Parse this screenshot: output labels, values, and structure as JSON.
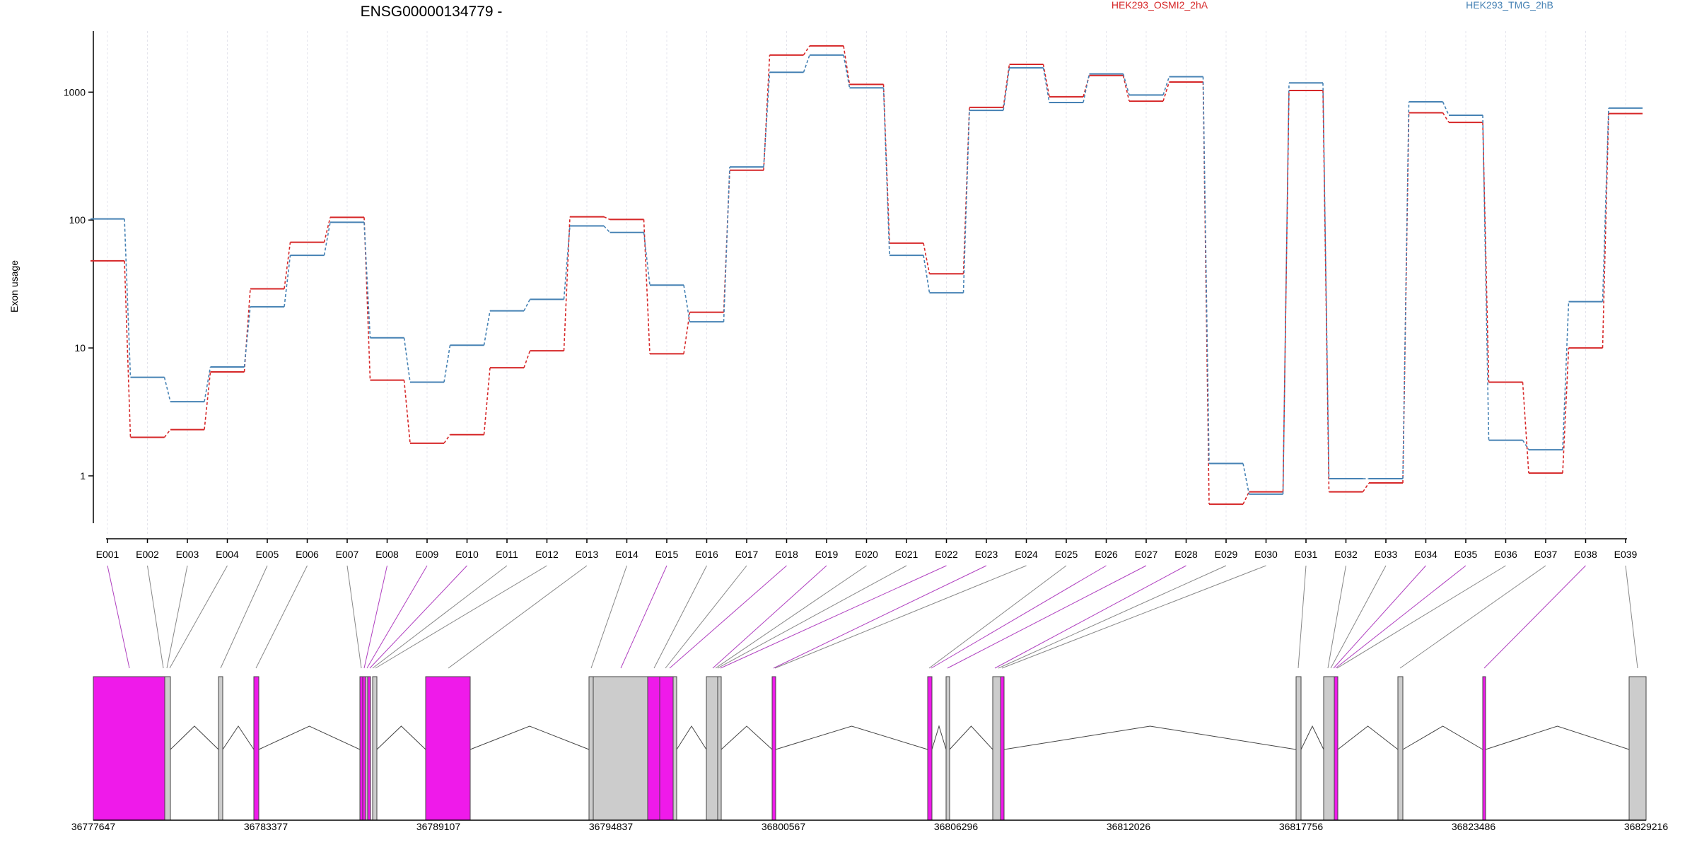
{
  "chart_data": {
    "type": "line",
    "title": "ENSG00000134779 -",
    "ylabel": "Exon usage",
    "yscale": "log",
    "ylim": [
      0.4,
      3000
    ],
    "yticks": [
      1,
      10,
      100,
      1000
    ],
    "ytick_labels": [
      "1",
      "10",
      "100",
      "1000"
    ],
    "grid": "vertical dotted lines at each exon",
    "legend_placement": "top-right",
    "categories": [
      "E001",
      "E002",
      "E003",
      "E004",
      "E005",
      "E006",
      "E007",
      "E008",
      "E009",
      "E010",
      "E011",
      "E012",
      "E013",
      "E014",
      "E015",
      "E016",
      "E017",
      "E018",
      "E019",
      "E020",
      "E021",
      "E022",
      "E023",
      "E024",
      "E025",
      "E026",
      "E027",
      "E028",
      "E029",
      "E030",
      "E031",
      "E032",
      "E033",
      "E034",
      "E035",
      "E036",
      "E037",
      "E038",
      "E039"
    ],
    "series": [
      {
        "name": "HEK293_OSMI2_2hA",
        "color": "#d62728",
        "values": [
          48,
          2.0,
          2.3,
          6.5,
          29,
          67,
          105,
          5.6,
          1.8,
          2.1,
          7.0,
          9.5,
          106,
          101,
          9.0,
          19,
          245,
          1950,
          2300,
          1150,
          66,
          38,
          760,
          1650,
          920,
          1350,
          850,
          1200,
          0.6,
          0.75,
          1030,
          0.75,
          0.88,
          690,
          580,
          5.4,
          1.05,
          10,
          680
        ]
      },
      {
        "name": "HEK293_TMG_2hB",
        "color": "#4682b4",
        "values": [
          102,
          5.9,
          3.8,
          7.1,
          21,
          53,
          96,
          12,
          5.4,
          10.5,
          19.5,
          24,
          90,
          80,
          31,
          16,
          260,
          1430,
          1950,
          1080,
          53,
          27,
          720,
          1550,
          830,
          1390,
          950,
          1320,
          1.25,
          0.72,
          1180,
          0.95,
          0.95,
          840,
          660,
          1.9,
          1.6,
          23,
          750
        ]
      }
    ],
    "gene_model": {
      "coordinate_ticks": [
        "36777647",
        "36783377",
        "36789107",
        "36794837",
        "36800567",
        "36806296",
        "36812026",
        "36817756",
        "36823486",
        "36829216"
      ],
      "highlight_color": "#ef1aea",
      "exon_color": "#cccccc"
    }
  }
}
